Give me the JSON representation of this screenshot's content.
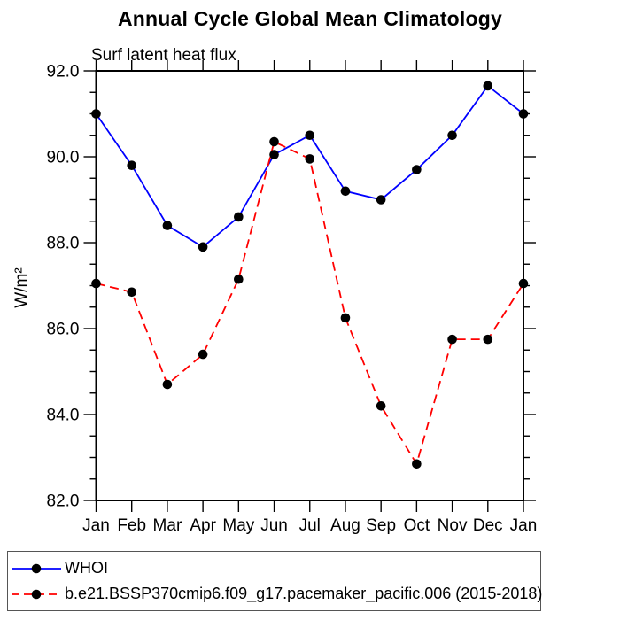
{
  "title": "Annual Cycle Global Mean Climatology",
  "subtitle": "Surf latent heat flux",
  "chart_data": {
    "type": "line",
    "title": "Annual Cycle Global Mean Climatology",
    "subtitle": "Surf latent heat flux",
    "xlabel": "",
    "ylabel": "W/m²",
    "categories": [
      "Jan",
      "Feb",
      "Mar",
      "Apr",
      "May",
      "Jun",
      "Jul",
      "Aug",
      "Sep",
      "Oct",
      "Nov",
      "Dec",
      "Jan"
    ],
    "ylim": [
      82.0,
      92.0
    ],
    "y_major_ticks": [
      82.0,
      84.0,
      86.0,
      88.0,
      90.0,
      92.0
    ],
    "y_major_tick_labels": [
      "82.0",
      "84.0",
      "86.0",
      "88.0",
      "90.0",
      "92.0"
    ],
    "y_minor_step": 0.5,
    "grid": false,
    "legend_position": "bottom",
    "axis_color": "#000000",
    "marker_color": "#000000",
    "series": [
      {
        "name": "WHOI",
        "color": "#0000ff",
        "line_style": "solid",
        "marker": "circle",
        "values": [
          91.0,
          89.8,
          88.4,
          87.9,
          88.6,
          90.05,
          90.5,
          89.2,
          89.0,
          89.7,
          90.5,
          91.65,
          91.0
        ]
      },
      {
        "name": "b.e21.BSSP370cmip6.f09_g17.pacemaker_pacific.006 (2015-2018)",
        "color": "#ff0000",
        "line_style": "dashed",
        "marker": "circle",
        "values": [
          87.05,
          86.85,
          84.7,
          85.4,
          87.15,
          90.35,
          89.95,
          86.25,
          84.2,
          82.85,
          85.75,
          85.75,
          87.05
        ]
      }
    ]
  }
}
